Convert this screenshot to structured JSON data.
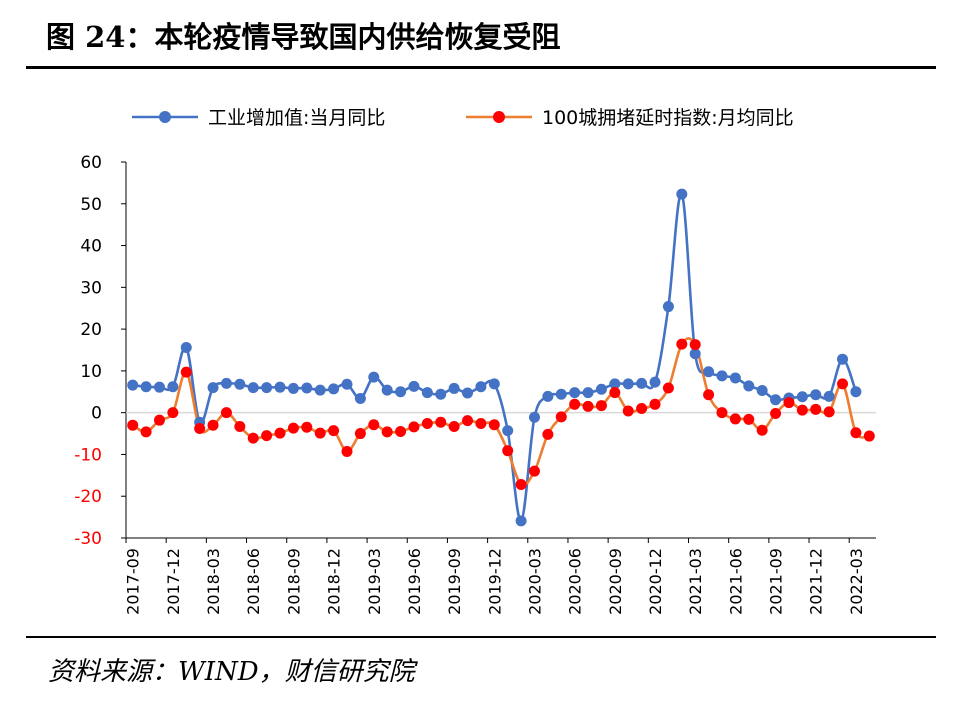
{
  "figure": {
    "title": "图 24：本轮疫情导致国内供给恢复受阻",
    "source": "资料来源：WIND，财信研究院"
  },
  "colors": {
    "series1": "#4472C4",
    "series2_line": "#ED7D31",
    "series2_marker": "#FF0000",
    "axis": "#000000",
    "negative_tick": "#FF0000",
    "grid_zero": "#D9D9D9"
  },
  "chart_data": {
    "type": "line",
    "title": "",
    "xlabel": "",
    "ylabel": "",
    "ylim": [
      -30,
      60
    ],
    "yticks": [
      60,
      50,
      40,
      30,
      20,
      10,
      0,
      -10,
      -20,
      -30
    ],
    "grid": false,
    "legend_position": "top",
    "x": [
      "2017-09",
      "2017-10",
      "2017-11",
      "2017-12",
      "2018-01",
      "2018-02",
      "2018-03",
      "2018-04",
      "2018-05",
      "2018-06",
      "2018-07",
      "2018-08",
      "2018-09",
      "2018-10",
      "2018-11",
      "2018-12",
      "2019-01",
      "2019-02",
      "2019-03",
      "2019-04",
      "2019-05",
      "2019-06",
      "2019-07",
      "2019-08",
      "2019-09",
      "2019-10",
      "2019-11",
      "2019-12",
      "2020-01",
      "2020-02",
      "2020-03",
      "2020-04",
      "2020-05",
      "2020-06",
      "2020-07",
      "2020-08",
      "2020-09",
      "2020-10",
      "2020-11",
      "2020-12",
      "2021-01",
      "2021-02",
      "2021-03",
      "2021-04",
      "2021-05",
      "2021-06",
      "2021-07",
      "2021-08",
      "2021-09",
      "2021-10",
      "2021-11",
      "2021-12",
      "2022-01",
      "2022-02",
      "2022-03",
      "2022-04"
    ],
    "xtick_labels": [
      "2017-09",
      "2017-12",
      "2018-03",
      "2018-06",
      "2018-09",
      "2018-12",
      "2019-03",
      "2019-06",
      "2019-09",
      "2019-12",
      "2020-03",
      "2020-06",
      "2020-09",
      "2020-12",
      "2021-03",
      "2021-06",
      "2021-09",
      "2021-12",
      "2022-03"
    ],
    "series": [
      {
        "name": "工业增加值:当月同比",
        "values": [
          6.6,
          6.2,
          6.1,
          6.2,
          15.6,
          -2.3,
          6.0,
          7.0,
          6.8,
          6.0,
          6.0,
          6.1,
          5.8,
          5.9,
          5.4,
          5.7,
          6.8,
          3.4,
          8.5,
          5.4,
          5.0,
          6.3,
          4.8,
          4.4,
          5.8,
          4.7,
          6.2,
          6.9,
          -4.3,
          -25.9,
          -1.1,
          3.9,
          4.4,
          4.8,
          4.8,
          5.6,
          6.9,
          6.9,
          7.0,
          7.3,
          25.4,
          52.3,
          14.1,
          9.8,
          8.8,
          8.3,
          6.4,
          5.3,
          3.1,
          3.5,
          3.8,
          4.3,
          3.9,
          12.8,
          5.0,
          null
        ]
      },
      {
        "name": "100城拥堵延时指数:月均同比",
        "values": [
          -3.0,
          -4.6,
          -1.8,
          0.0,
          9.7,
          -3.8,
          -3.0,
          0.0,
          -3.3,
          -6.1,
          -5.5,
          -4.9,
          -3.7,
          -3.5,
          -4.9,
          -4.3,
          -9.3,
          -5.0,
          -2.9,
          -4.6,
          -4.5,
          -3.4,
          -2.6,
          -2.3,
          -3.3,
          -1.9,
          -2.6,
          -2.9,
          -9.1,
          -17.2,
          -14.0,
          -5.2,
          -1.0,
          2.0,
          1.5,
          1.7,
          4.8,
          0.4,
          1.0,
          2.0,
          5.9,
          16.4,
          16.3,
          4.3,
          0.0,
          -1.5,
          -1.6,
          -4.2,
          -0.2,
          2.4,
          0.6,
          0.8,
          0.2,
          6.9,
          -4.8,
          -5.6
        ]
      }
    ]
  }
}
